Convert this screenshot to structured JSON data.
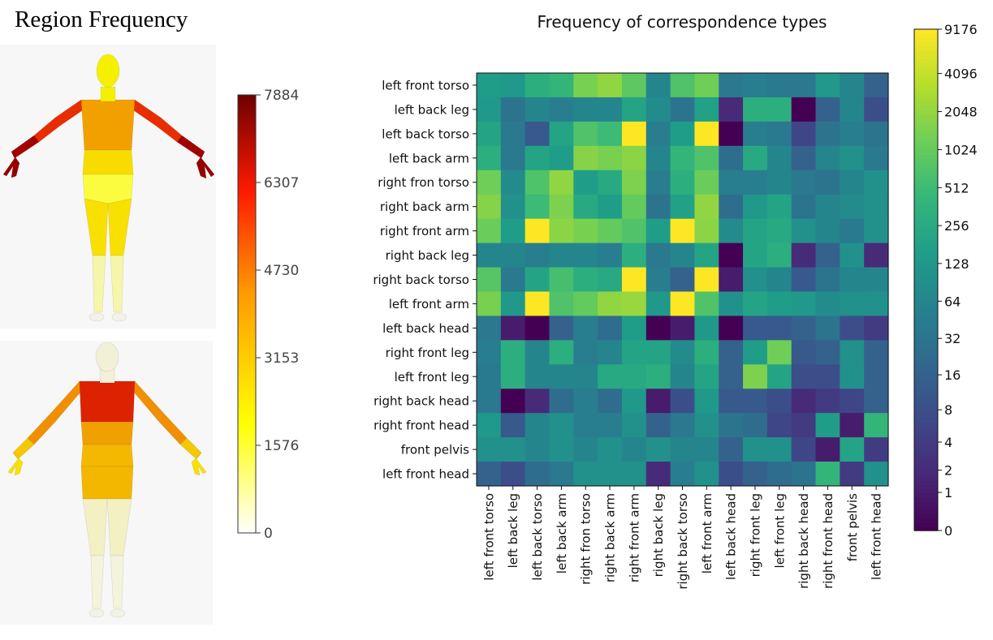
{
  "region_panel": {
    "title": "Region Frequency",
    "colorbar_ticks": [
      "7884",
      "6307",
      "4730",
      "3153",
      "1576",
      "0"
    ],
    "colorbar_colors": [
      "#ffffff",
      "#ffff00",
      "#ff9900",
      "#ff1a00",
      "#6e0000"
    ],
    "figures": [
      {
        "view": "front",
        "head": "#f4f000",
        "torso": "#f2a000",
        "upper_arms": "#e82e00",
        "forearms": "#a40000",
        "hands": "#950000",
        "waist": "#f8dc00",
        "pelvis": "#fbfb40",
        "thighs": "#f8e000",
        "shins": "#f6f6aa",
        "feet": "#f2f2e6"
      },
      {
        "view": "back",
        "head": "#f2f0d6",
        "upper_back": "#dc2200",
        "mid_back": "#f0a000",
        "lower_back": "#f4b800",
        "upper_arms": "#f09000",
        "forearms": "#f6c800",
        "hands": "#f8e000",
        "hips": "#f3b700",
        "thighs": "#f3f0c4",
        "shins": "#f4f3dc",
        "feet": "#f2f2e6"
      }
    ]
  },
  "chart_data": {
    "type": "heatmap",
    "title": "Frequency of correspondence types",
    "row_labels": [
      "left front torso",
      "left back leg",
      "left back torso",
      "left back arm",
      "right fron torso",
      "right back arm",
      "right front arm",
      "right back leg",
      "right back torso",
      "left front arm",
      "left back head",
      "right front leg",
      "left front leg",
      "right back head",
      "right front head",
      "front pelvis",
      "left front head"
    ],
    "col_labels": [
      "left front torso",
      "left back leg",
      "left back torso",
      "left back arm",
      "right fron torso",
      "right back arm",
      "right front arm",
      "right back leg",
      "right back torso",
      "left front arm",
      "left back head",
      "right front leg",
      "left front leg",
      "right back head",
      "right front head",
      "front pelvis",
      "left front head"
    ],
    "values": [
      [
        150,
        128,
        300,
        400,
        1400,
        2000,
        900,
        64,
        700,
        1200,
        40,
        48,
        40,
        40,
        128,
        64,
        16
      ],
      [
        128,
        32,
        64,
        48,
        64,
        64,
        200,
        80,
        32,
        180,
        2,
        300,
        300,
        0,
        16,
        64,
        8
      ],
      [
        200,
        40,
        12,
        200,
        700,
        500,
        9176,
        48,
        150,
        9176,
        0,
        48,
        40,
        6,
        32,
        48,
        32
      ],
      [
        300,
        40,
        200,
        150,
        1700,
        1400,
        1800,
        64,
        400,
        700,
        24,
        250,
        64,
        16,
        64,
        96,
        40
      ],
      [
        1200,
        80,
        700,
        2000,
        150,
        250,
        1500,
        48,
        300,
        1100,
        48,
        48,
        64,
        40,
        32,
        64,
        100
      ],
      [
        1700,
        100,
        500,
        1500,
        250,
        150,
        1000,
        32,
        180,
        2000,
        24,
        128,
        200,
        32,
        64,
        80,
        96
      ],
      [
        1100,
        150,
        9176,
        1800,
        1400,
        1000,
        700,
        150,
        9176,
        1800,
        80,
        200,
        250,
        100,
        64,
        40,
        100
      ],
      [
        64,
        64,
        48,
        64,
        64,
        48,
        300,
        40,
        64,
        200,
        0,
        200,
        300,
        2,
        16,
        100,
        2
      ],
      [
        800,
        40,
        200,
        600,
        300,
        250,
        9176,
        48,
        16,
        9176,
        1,
        96,
        64,
        12,
        32,
        64,
        64
      ],
      [
        1400,
        128,
        9176,
        700,
        1000,
        2000,
        2200,
        128,
        9176,
        700,
        100,
        200,
        150,
        128,
        80,
        96,
        100
      ],
      [
        40,
        1,
        0,
        16,
        48,
        24,
        150,
        0,
        1,
        128,
        0,
        12,
        12,
        16,
        32,
        8,
        4
      ],
      [
        48,
        300,
        64,
        300,
        48,
        64,
        200,
        200,
        80,
        300,
        16,
        150,
        1200,
        12,
        16,
        96,
        16
      ],
      [
        40,
        300,
        64,
        64,
        64,
        250,
        250,
        300,
        64,
        200,
        16,
        1500,
        200,
        8,
        8,
        100,
        16
      ],
      [
        40,
        0,
        2,
        24,
        48,
        24,
        128,
        1,
        8,
        128,
        12,
        12,
        8,
        2,
        4,
        6,
        16
      ],
      [
        128,
        12,
        64,
        96,
        48,
        48,
        100,
        16,
        40,
        96,
        32,
        24,
        6,
        4,
        150,
        1,
        400
      ],
      [
        96,
        96,
        64,
        100,
        64,
        96,
        64,
        100,
        64,
        64,
        16,
        100,
        100,
        6,
        1,
        200,
        4
      ],
      [
        16,
        8,
        24,
        40,
        96,
        96,
        100,
        2,
        48,
        100,
        8,
        16,
        24,
        32,
        400,
        4,
        96
      ]
    ],
    "colorbar_ticks": [
      9176,
      4096,
      2048,
      1024,
      512,
      256,
      128,
      64,
      32,
      16,
      8,
      4,
      2,
      1,
      0
    ],
    "colormap": "viridis",
    "scale": "log"
  }
}
